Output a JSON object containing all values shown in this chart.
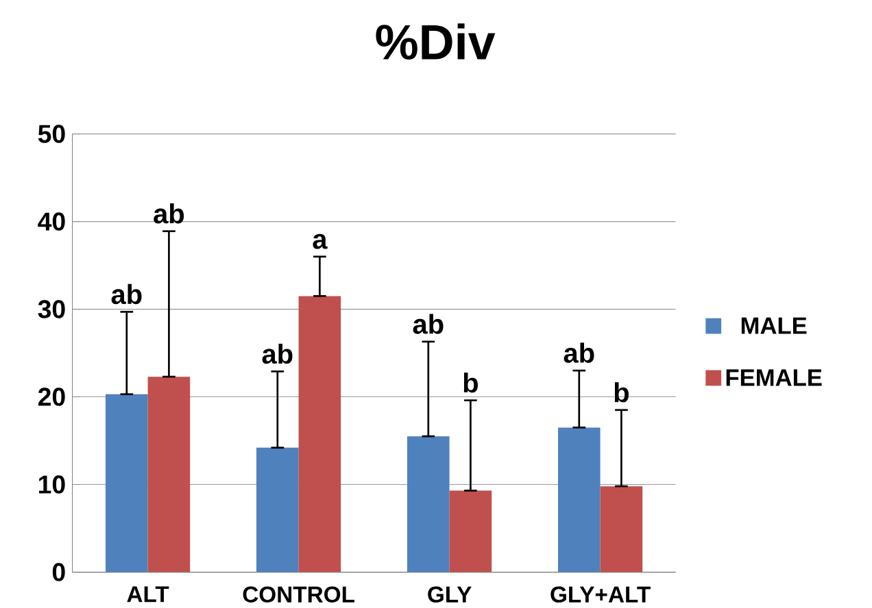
{
  "chart_data": {
    "type": "bar",
    "title": "%Div",
    "categories": [
      "ALT",
      "CONTROL",
      "GLY",
      "GLY+ALT"
    ],
    "series": [
      {
        "name": "MALE",
        "color": "#4f81bd",
        "values": [
          20.3,
          14.2,
          15.5,
          16.5
        ],
        "errors": [
          [
            20.3,
            29.7
          ],
          [
            14.2,
            22.9
          ],
          [
            15.5,
            26.3
          ],
          [
            16.5,
            23.0
          ]
        ]
      },
      {
        "name": "FEMALE",
        "color": "#c0504d",
        "values": [
          22.3,
          31.5,
          9.3,
          9.8
        ],
        "errors": [
          [
            22.3,
            38.9
          ],
          [
            31.5,
            36.0
          ],
          [
            9.3,
            19.6
          ],
          [
            9.8,
            18.5
          ]
        ]
      }
    ],
    "annotations": [
      "ab",
      "ab",
      "ab",
      "a",
      "ab",
      "b",
      "ab",
      "b"
    ],
    "ylim": [
      0,
      50
    ],
    "yticks": [
      0,
      10,
      20,
      30,
      40,
      50
    ],
    "grid": "y",
    "legend": "right"
  }
}
